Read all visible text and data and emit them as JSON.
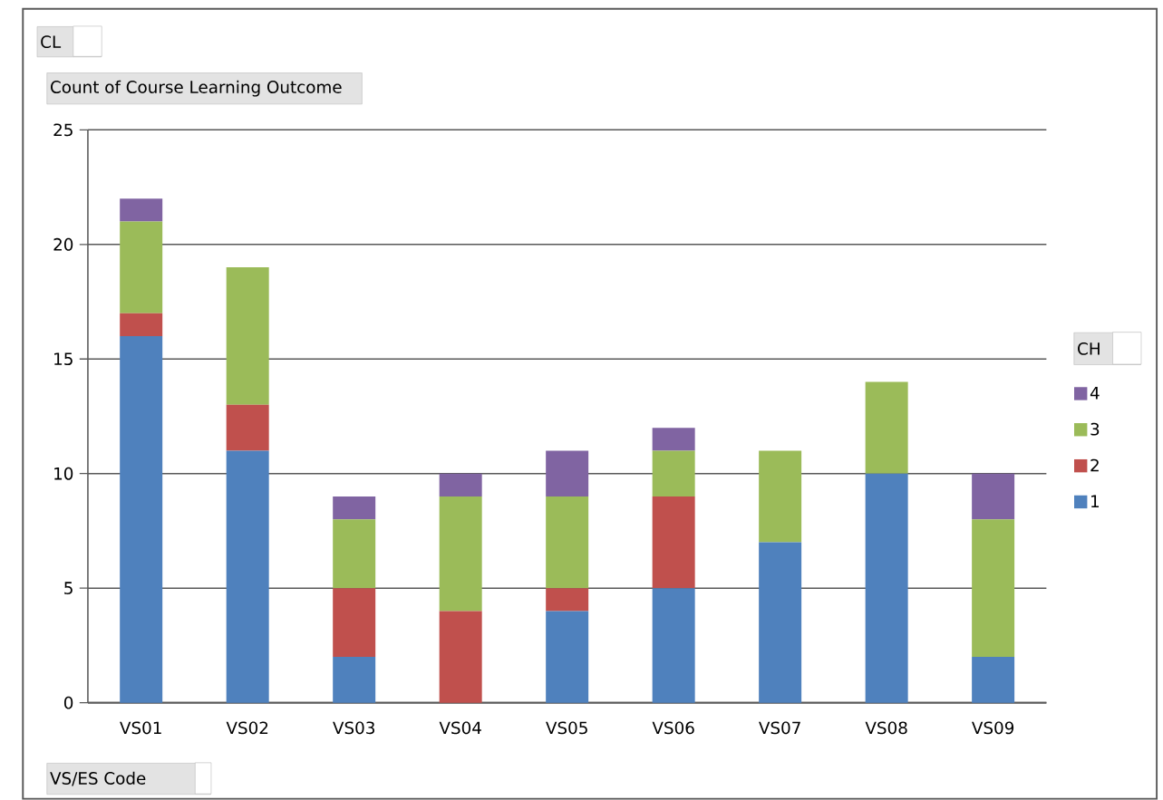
{
  "chart_data": {
    "type": "bar",
    "stacked": true,
    "ylabel": "Count of Course Learning Outcome",
    "xlabel": "VS/ES Code",
    "legend_title": "CH",
    "annotations": [
      "CL"
    ],
    "categories": [
      "VS01",
      "VS02",
      "VS03",
      "VS04",
      "VS05",
      "VS06",
      "VS07",
      "VS08",
      "VS09"
    ],
    "series": [
      {
        "name": "1",
        "color": "#4f81bd",
        "values": [
          16,
          11,
          2,
          0,
          4,
          5,
          7,
          10,
          2
        ]
      },
      {
        "name": "2",
        "color": "#c0504d",
        "values": [
          1,
          2,
          3,
          4,
          1,
          4,
          0,
          0,
          0
        ]
      },
      {
        "name": "3",
        "color": "#9bbb59",
        "values": [
          4,
          6,
          3,
          5,
          4,
          2,
          4,
          4,
          6
        ]
      },
      {
        "name": "4",
        "color": "#8064a2",
        "values": [
          1,
          0,
          1,
          1,
          2,
          1,
          0,
          0,
          2
        ]
      }
    ],
    "ylim": [
      0,
      25
    ],
    "yticks": [
      0,
      5,
      10,
      15,
      20,
      25
    ],
    "grid": "y",
    "legend": "right"
  }
}
